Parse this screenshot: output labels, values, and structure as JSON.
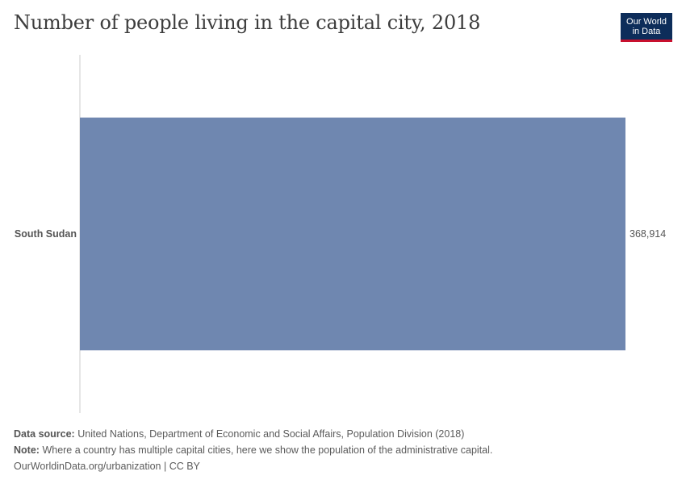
{
  "header": {
    "title": "Number of people living in the capital city, 2018",
    "logo_line1": "Our World",
    "logo_line2": "in Data"
  },
  "colors": {
    "bar": "#6f87b0",
    "axis": "#cccccc",
    "logo_bg": "#0d2d5a",
    "logo_accent": "#c8102e"
  },
  "chart_data": {
    "type": "bar",
    "orientation": "horizontal",
    "title": "Number of people living in the capital city, 2018",
    "categories": [
      "South Sudan"
    ],
    "values": [
      368914
    ],
    "value_labels": [
      "368,914"
    ],
    "xlim": [
      0,
      368914
    ],
    "grid": false
  },
  "footer": {
    "source_label": "Data source:",
    "source_text": "United Nations, Department of Economic and Social Affairs, Population Division (2018)",
    "note_label": "Note:",
    "note_text": "Where a country has multiple capital cities, here we show the population of the administrative capital.",
    "url_text": "OurWorldinData.org/urbanization | CC BY"
  }
}
